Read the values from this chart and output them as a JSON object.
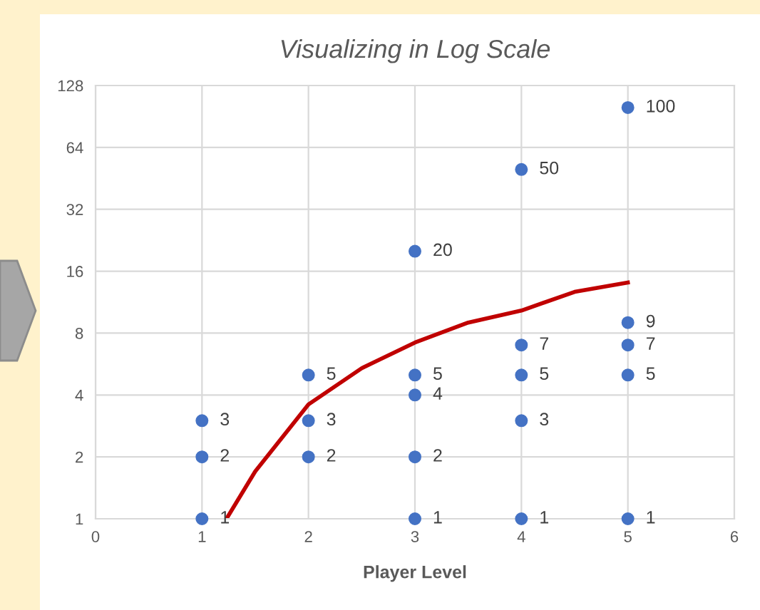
{
  "chart_data": {
    "type": "scatter",
    "title": "Visualizing in Log Scale",
    "xlabel": "Player Level",
    "log": "y",
    "xlim": [
      0,
      6
    ],
    "xticks": [
      0,
      1,
      2,
      3,
      4,
      5,
      6
    ],
    "ylim": [
      1,
      128
    ],
    "yticks": [
      1,
      2,
      4,
      8,
      16,
      32,
      64,
      128
    ],
    "grid": true,
    "legend": false,
    "series": [
      {
        "marker": "circle",
        "color": "#4472c4",
        "x": [
          1,
          1,
          1,
          2,
          2,
          2,
          3,
          3,
          3,
          3,
          3,
          4,
          4,
          4,
          4,
          4,
          5,
          5,
          5,
          5,
          5
        ],
        "values": [
          1,
          2,
          3,
          2,
          3,
          5,
          1,
          2,
          4,
          5,
          20,
          1,
          3,
          5,
          7,
          50,
          1,
          5,
          7,
          9,
          100
        ],
        "value_labels": [
          "1",
          "2",
          "3",
          "2",
          "3",
          "5",
          "1",
          "2",
          "4",
          "5",
          "20",
          "1",
          "3",
          "5",
          "7",
          "50",
          "1",
          "5",
          "7",
          "9",
          "100"
        ]
      },
      {
        "type": "line",
        "marker": "none",
        "color": "#c00000",
        "x": [
          1.23,
          1.5,
          2,
          2.5,
          3,
          3.5,
          4,
          4.5,
          5
        ],
        "values": [
          1,
          1.7,
          3.6,
          5.4,
          7.2,
          9,
          10.3,
          12.7,
          14.1
        ]
      }
    ]
  }
}
